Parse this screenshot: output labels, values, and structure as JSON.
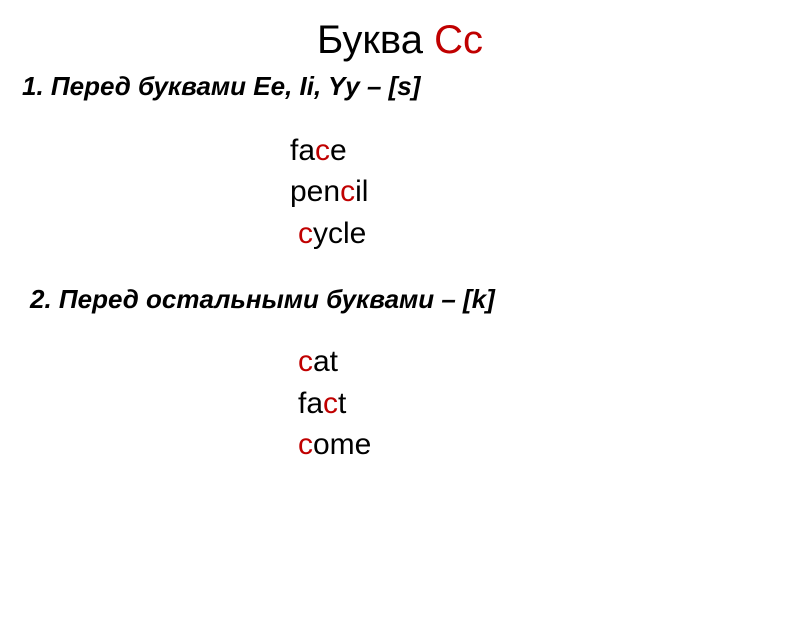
{
  "title": {
    "black": "Буква ",
    "red": "Сс",
    "title_fontsize": 40,
    "black_color": "#000000",
    "red_color": "#c00000"
  },
  "rule1": {
    "text": "1.   Перед буквами  Ee, Ii, Yy – [s]",
    "fontsize": 26,
    "fontweight": "bold",
    "fontstyle": "italic",
    "color": "#000000"
  },
  "examples1": {
    "fontsize": 30,
    "red_color": "#c00000",
    "black_color": "#000000",
    "lines": [
      {
        "pre": "fa",
        "red": "c",
        "post": "e",
        "indent": 0
      },
      {
        "pre": "pen",
        "red": "c",
        "post": "il",
        "indent": 0
      },
      {
        "pre": "",
        "red": "c",
        "post": "ycle",
        "indent": 8
      }
    ]
  },
  "rule2": {
    "text": "2. Перед остальными буквами – [k]",
    "fontsize": 26,
    "fontweight": "bold",
    "fontstyle": "italic",
    "color": "#000000"
  },
  "examples2": {
    "fontsize": 30,
    "red_color": "#c00000",
    "black_color": "#000000",
    "lines": [
      {
        "pre": "",
        "red": "c",
        "post": "at",
        "indent": 0
      },
      {
        "pre": "fa",
        "red": "c",
        "post": "t",
        "indent": 0
      },
      {
        "pre": "",
        "red": "c",
        "post": "ome",
        "indent": 0
      }
    ]
  },
  "background_color": "#ffffff"
}
